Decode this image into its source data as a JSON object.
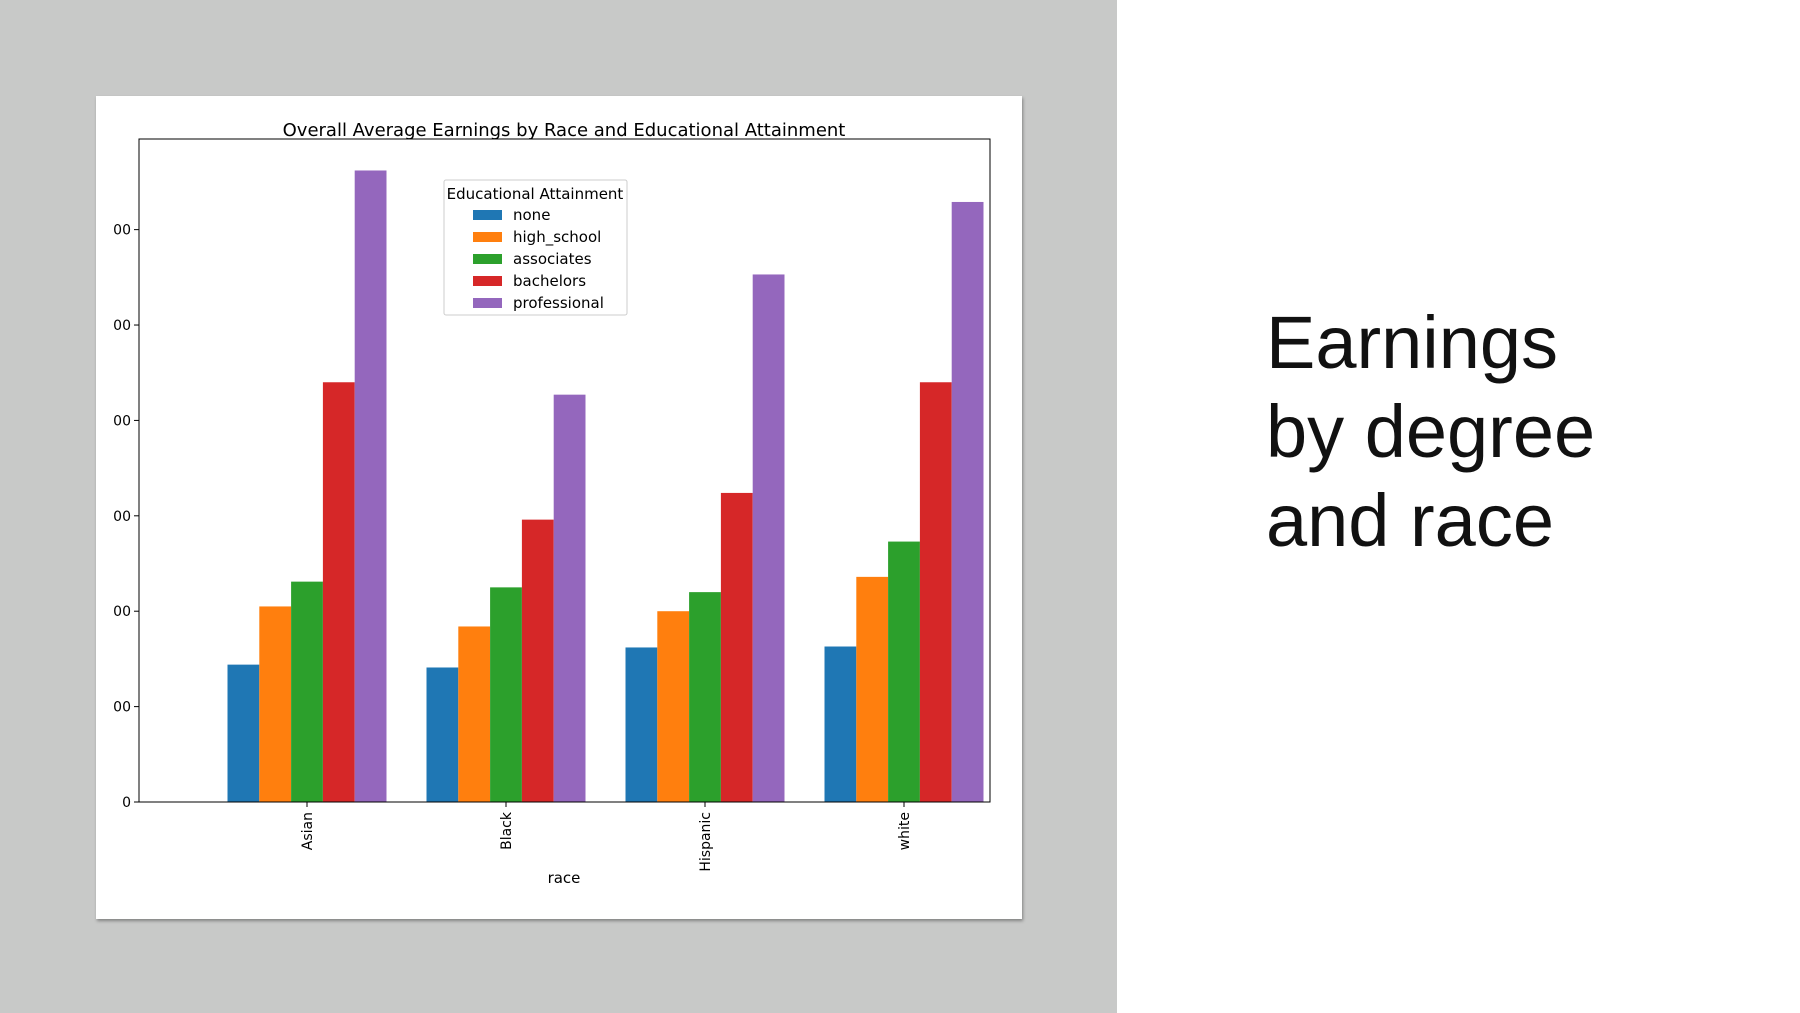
{
  "slide": {
    "title_lines": [
      "Earnings",
      "by degree",
      "and race"
    ]
  },
  "chart_data": {
    "type": "bar",
    "title": "Overall Average Earnings by Race and Educational Attainment",
    "xlabel": "race",
    "ylabel": "",
    "categories": [
      "Asian",
      "Black",
      "Hispanic",
      "white"
    ],
    "ylim": [
      0,
      69500
    ],
    "yticks": [
      0,
      10000,
      20000,
      30000,
      40000,
      50000,
      60000
    ],
    "ytick_labels": [
      "0",
      "00",
      "00",
      "00",
      "00",
      "00",
      "00"
    ],
    "grid": false,
    "legend": {
      "title": "Educational Attainment",
      "position": "top-center"
    },
    "series": [
      {
        "name": "none",
        "color": "#1f77b4",
        "values": [
          14400,
          14100,
          16200,
          16300
        ]
      },
      {
        "name": "high_school",
        "color": "#ff7f0e",
        "values": [
          20500,
          18400,
          20000,
          23600
        ]
      },
      {
        "name": "associates",
        "color": "#2ca02c",
        "values": [
          23100,
          22500,
          22000,
          27300
        ]
      },
      {
        "name": "bachelors",
        "color": "#d62728",
        "values": [
          44000,
          29600,
          32400,
          44000
        ]
      },
      {
        "name": "professional",
        "color": "#9467bd",
        "values": [
          66200,
          42700,
          55300,
          62900
        ]
      }
    ]
  }
}
